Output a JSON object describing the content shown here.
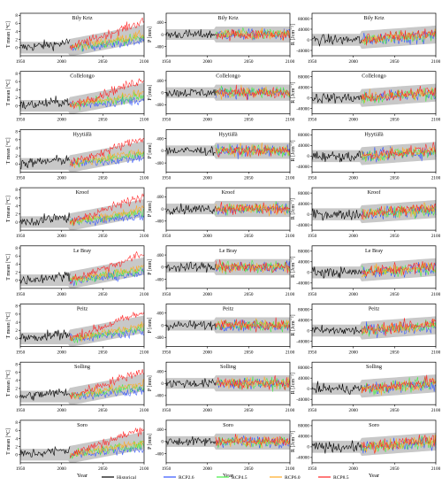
{
  "figure": {
    "columns": [
      "T",
      "P",
      "R"
    ],
    "sites": [
      "Bily Kriz",
      "Collelongo",
      "Hyytiälä",
      "Kroof",
      "Le Bray",
      "Peitz",
      "Solling",
      "Soro"
    ],
    "ylabels": {
      "T": "T mean [°C]",
      "P": "P [mm]",
      "R": "R [Jcm⁻²]"
    },
    "xlabel": "Year",
    "xticks": [
      "1950",
      "2000",
      "2050",
      "2100"
    ],
    "yticks": {
      "T": [
        "0",
        "2",
        "4",
        "6",
        "8"
      ],
      "P": [
        "-400",
        "0",
        "400"
      ],
      "R": [
        "-40000",
        "0",
        "40000",
        "80000"
      ]
    },
    "legend": [
      {
        "label": "Historical",
        "color": "#000000"
      },
      {
        "label": "RCP2.6",
        "color": "#3355ff"
      },
      {
        "label": "RCP4.5",
        "color": "#44ee44"
      },
      {
        "label": "RCP6.0",
        "color": "#ffaa22"
      },
      {
        "label": "RCP8.5",
        "color": "#ff2222"
      }
    ],
    "envelope_color": "#c8c8c8"
  },
  "chart_data": {
    "type": "line",
    "layout": "8 rows (sites) × 3 columns (T mean, P, R) of small time-series panels",
    "x_range": [
      1950,
      2100
    ],
    "x_split": 2010,
    "ylim": {
      "T": [
        -2,
        8.5
      ],
      "P": [
        -700,
        700
      ],
      "R": [
        -60000,
        100000
      ]
    },
    "grid": false,
    "legend_position": "bottom",
    "series_order": [
      "Historical",
      "RCP2.6",
      "RCP4.5",
      "RCP6.0",
      "RCP8.5"
    ],
    "panels_note": "Historical anomalies 1950–2010 followed by four RCP scenario projections 2010–2100 over a grey ensemble envelope",
    "endpoint_2100": {
      "T": {
        "RCP2.6": 1.5,
        "RCP4.5": 2.5,
        "RCP6.0": 3.2,
        "RCP8.5": 6.5
      },
      "P": {
        "RCP2.6": 0,
        "RCP4.5": 0,
        "RCP6.0": 0,
        "RCP8.5": 0
      },
      "R": {
        "RCP2.6": 15000,
        "RCP4.5": 18000,
        "RCP6.0": 22000,
        "RCP8.5": 28000
      }
    }
  }
}
